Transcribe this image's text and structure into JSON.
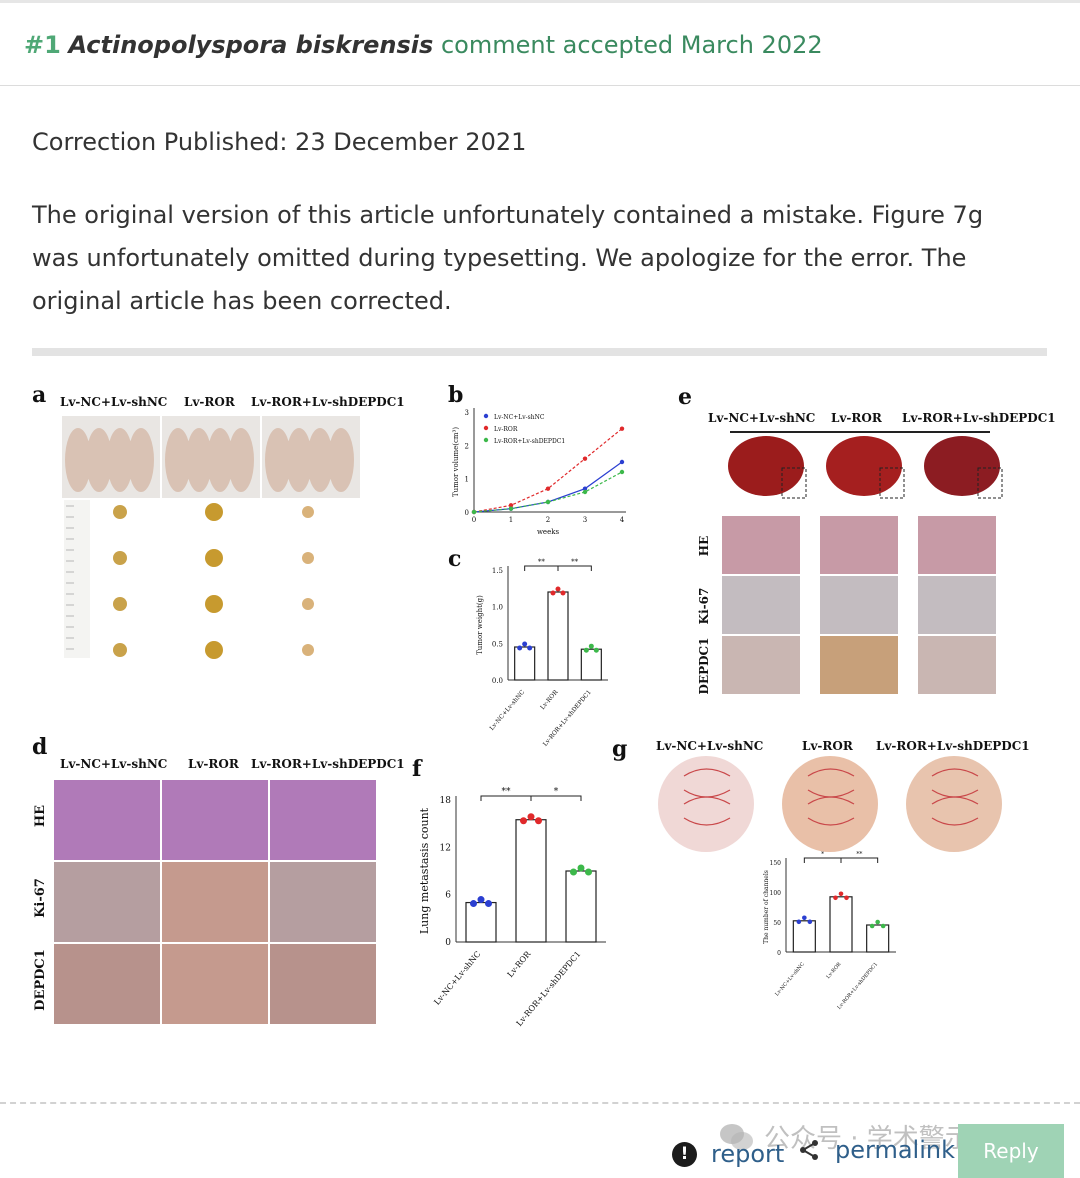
{
  "header": {
    "number": "#1",
    "species": "Actinopolyspora biskrensis",
    "status": "comment accepted March 2022"
  },
  "correction": {
    "published": "Correction Published: 23 December 2021",
    "text": "The original version of this article unfortunately contained a mistake. Figure 7g was unfortunately omitted during typesetting. We apologize for the error. The original article has been corrected."
  },
  "figure": {
    "group_labels": [
      "Lv-NC+Lv-shNC",
      "Lv-ROR",
      "Lv-ROR+Lv-shDEPDC1"
    ],
    "panel_letters": [
      "a",
      "b",
      "c",
      "d",
      "e",
      "f",
      "g"
    ],
    "row_labels": [
      "HE",
      "Ki-67",
      "DEPDC1"
    ],
    "panel_b": {
      "legend": [
        "Lv-NC+Lv-shNC",
        "Lv-ROR",
        "Lv-ROR+Lv-shDEPDC1"
      ],
      "xlabel": "weeks",
      "ylabel": "Tumor volume(cm³)",
      "x_ticks": [
        "0",
        "1",
        "2",
        "3",
        "4"
      ],
      "y_ticks": [
        "0",
        "1",
        "2",
        "3"
      ]
    },
    "panel_c": {
      "ylabel": "Tumor weight(g)",
      "y_ticks": [
        "0.0",
        "0.5",
        "1.0",
        "1.5"
      ],
      "sig": [
        "**",
        "**"
      ]
    },
    "panel_f": {
      "ylabel": "Lung metastasis count",
      "y_ticks": [
        "0",
        "6",
        "12",
        "18"
      ],
      "sig": [
        "**",
        "*"
      ]
    },
    "panel_g": {
      "ylabel": "The number of channels",
      "y_ticks": [
        "0",
        "50",
        "100",
        "150"
      ],
      "sig": [
        "*",
        "**"
      ]
    },
    "colors": {
      "group1": "#2b3fd1",
      "group2": "#e0292b",
      "group3": "#3cb84a"
    }
  },
  "chart_data": [
    {
      "type": "line",
      "x": [
        0,
        1,
        2,
        3,
        4
      ],
      "xlabel": "weeks",
      "ylabel": "Tumor volume(cm³)",
      "ylim": [
        0,
        3
      ],
      "series": [
        {
          "name": "Lv-NC+Lv-shNC",
          "values": [
            0,
            0.1,
            0.3,
            0.7,
            1.5
          ]
        },
        {
          "name": "Lv-ROR",
          "values": [
            0,
            0.2,
            0.7,
            1.6,
            2.5
          ]
        },
        {
          "name": "Lv-ROR+Lv-shDEPDC1",
          "values": [
            0,
            0.1,
            0.3,
            0.6,
            1.2
          ]
        }
      ]
    },
    {
      "type": "bar",
      "categories": [
        "Lv-NC+Lv-shNC",
        "Lv-ROR",
        "Lv-ROR+Lv-shDEPDC1"
      ],
      "values": [
        0.45,
        1.2,
        0.42
      ],
      "ylabel": "Tumor weight(g)",
      "ylim": [
        0,
        1.5
      ]
    },
    {
      "type": "bar",
      "categories": [
        "Lv-NC+Lv-shNC",
        "Lv-ROR",
        "Lv-ROR+Lv-shDEPDC1"
      ],
      "values": [
        5,
        15.5,
        9
      ],
      "ylabel": "Lung metastasis count",
      "ylim": [
        0,
        18
      ]
    },
    {
      "type": "bar",
      "categories": [
        "Lv-NC+Lv-shNC",
        "Lv-ROR",
        "Lv-ROR+Lv-shDEPDC1"
      ],
      "values": [
        52,
        92,
        45
      ],
      "ylabel": "The number of channels",
      "ylim": [
        0,
        150
      ]
    }
  ],
  "footer": {
    "report_label": "report",
    "report_icon": "exclamation-circle-icon",
    "permalink_label": "permalink",
    "permalink_icon": "share-icon",
    "reply_label": "Reply",
    "watermark": "公众号 · 学术警示录"
  }
}
